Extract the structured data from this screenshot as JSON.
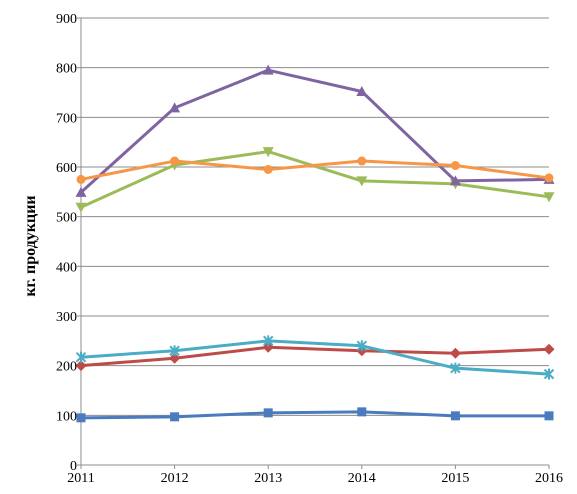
{
  "chart_data": {
    "type": "line",
    "title": "",
    "xlabel": "",
    "ylabel": "кг. продукции",
    "x": [
      "2011",
      "2012",
      "2013",
      "2014",
      "2015",
      "2016"
    ],
    "ylim": [
      0,
      900
    ],
    "y_ticks": [
      "0",
      "100",
      "200",
      "300",
      "400",
      "500",
      "600",
      "700",
      "800",
      "900"
    ],
    "grid": true,
    "legend": "none",
    "series": [
      {
        "color": "#4a7bbf",
        "marker": "square",
        "values": [
          95,
          97,
          105,
          107,
          99,
          99
        ]
      },
      {
        "color": "#be4b48",
        "marker": "diamond",
        "values": [
          200,
          215,
          237,
          230,
          225,
          233
        ]
      },
      {
        "color": "#9bbb59",
        "marker": "triangle-down",
        "values": [
          519,
          604,
          631,
          572,
          566,
          540
        ]
      },
      {
        "color": "#8064a2",
        "marker": "triangle-up",
        "values": [
          549,
          719,
          795,
          752,
          572,
          575
        ]
      },
      {
        "color": "#4bacc6",
        "marker": "star",
        "values": [
          217,
          230,
          250,
          240,
          195,
          183
        ]
      },
      {
        "color": "#f79646",
        "marker": "circle",
        "values": [
          575,
          612,
          595,
          612,
          603,
          578
        ]
      }
    ]
  }
}
